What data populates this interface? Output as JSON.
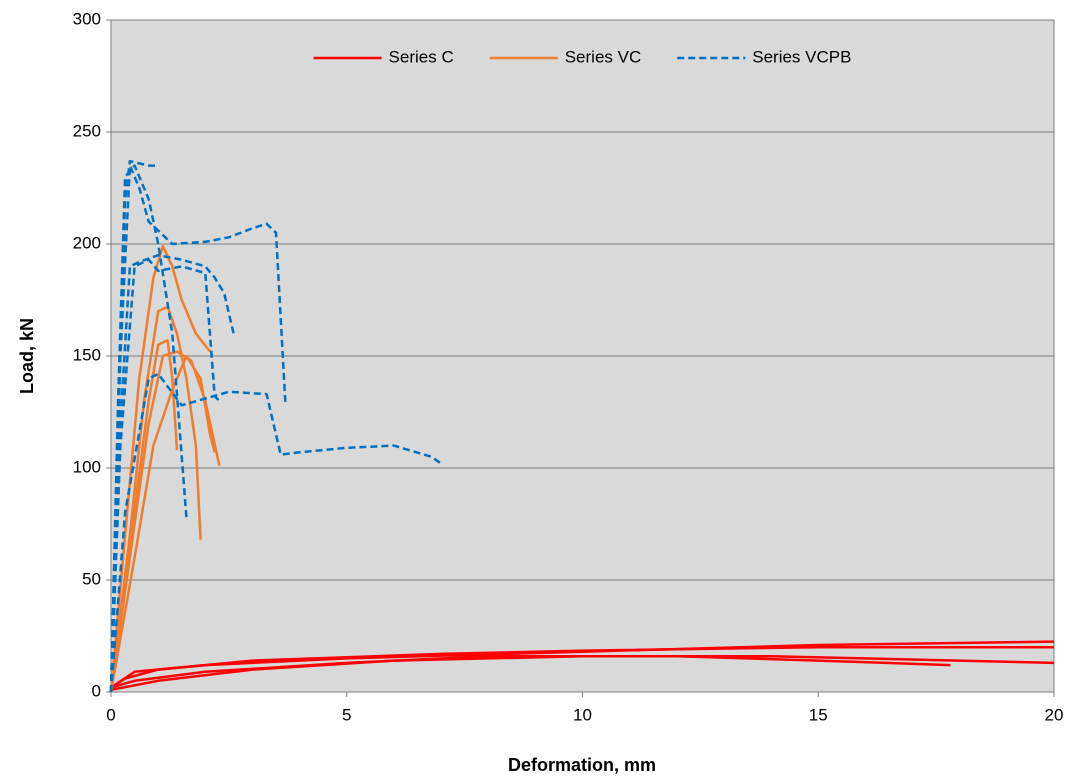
{
  "chart_data": {
    "type": "line",
    "xlabel": "Deformation, mm",
    "ylabel": "Load, kN",
    "xlim": [
      0,
      20
    ],
    "ylim": [
      0,
      300
    ],
    "xticks": [
      0,
      5,
      10,
      15,
      20
    ],
    "yticks": [
      0,
      50,
      100,
      150,
      200,
      250,
      300
    ],
    "grid": true,
    "legend": "top",
    "series": [
      {
        "name": "Series C",
        "color": "#ff0000",
        "dashed": false,
        "curves": [
          {
            "x": [
              0,
              0.5,
              2,
              5,
              10,
              15,
              20
            ],
            "values": [
              2,
              9,
              12,
              15,
              18,
              21,
              22.5
            ]
          },
          {
            "x": [
              0,
              0.3,
              1,
              3,
              7,
              10,
              15,
              20
            ],
            "values": [
              2,
              6,
              10,
              14,
              17,
              18.5,
              20,
              20
            ]
          },
          {
            "x": [
              0,
              1,
              3,
              6,
              10,
              14,
              20
            ],
            "values": [
              1,
              5,
              10,
              14,
              16,
              16,
              13
            ]
          },
          {
            "x": [
              0,
              0.5,
              2,
              5,
              8,
              12,
              15,
              17.8
            ],
            "values": [
              2,
              5,
              9,
              13,
              16,
              16,
              14,
              12
            ]
          }
        ]
      },
      {
        "name": "Series VC",
        "color": "#ed7d31",
        "dashed": false,
        "curves": [
          {
            "x": [
              0,
              0.3,
              0.6,
              0.9,
              1.1,
              1.3,
              1.5,
              1.8,
              2.1
            ],
            "values": [
              0,
              70,
              140,
              185,
              199,
              190,
              175,
              160,
              152
            ]
          },
          {
            "x": [
              0,
              0.4,
              0.7,
              1,
              1.2,
              1.4,
              1.6,
              1.8,
              1.9
            ],
            "values": [
              0,
              70,
              130,
              170,
              172,
              160,
              140,
              110,
              68
            ]
          },
          {
            "x": [
              0,
              0.4,
              0.8,
              1.1,
              1.4,
              1.7,
              2,
              2.3
            ],
            "values": [
              0,
              60,
              120,
              150,
              152,
              148,
              130,
              101
            ]
          },
          {
            "x": [
              0,
              0.4,
              0.8,
              1.0,
              1.2,
              1.3,
              1.4
            ],
            "values": [
              0,
              65,
              130,
              155,
              157,
              140,
              108
            ]
          },
          {
            "x": [
              0,
              0.5,
              0.9,
              1.3,
              1.6,
              1.9,
              2.1,
              2.2
            ],
            "values": [
              0,
              60,
              110,
              135,
              150,
              140,
              115,
              107
            ]
          }
        ]
      },
      {
        "name": "Series VCPB",
        "color": "#0070c0",
        "dashed": true,
        "curves": [
          {
            "x": [
              0,
              0.15,
              0.3,
              0.4,
              0.6,
              0.8,
              1.0
            ],
            "values": [
              0,
              120,
              220,
              237,
              236,
              235,
              235
            ]
          },
          {
            "x": [
              0,
              0.15,
              0.3,
              0.5,
              0.8,
              1.0,
              1.3,
              1.6
            ],
            "values": [
              0,
              130,
              230,
              235,
              220,
              200,
              160,
              78
            ]
          },
          {
            "x": [
              0,
              0.2,
              0.4,
              0.6,
              0.8,
              1.3,
              2.0,
              2.5,
              3.0,
              3.3,
              3.5,
              3.7
            ],
            "values": [
              0,
              150,
              235,
              225,
              210,
              200,
              201,
              203,
              207,
              209,
              205,
              128
            ]
          },
          {
            "x": [
              0,
              0.2,
              0.4,
              0.6,
              1,
              1.5,
              2,
              2.2,
              2.4,
              2.6
            ],
            "values": [
              0,
              120,
              190,
              192,
              195,
              193,
              190,
              185,
              178,
              160
            ]
          },
          {
            "x": [
              0,
              0.2,
              0.5,
              0.8,
              1.0,
              1.5,
              2.0,
              2.2,
              2.3
            ],
            "values": [
              0,
              110,
              190,
              193,
              188,
              190,
              187,
              132,
              130
            ]
          },
          {
            "x": [
              0,
              0.3,
              0.8,
              1.0,
              1.5,
              2.5,
              3.3,
              3.6,
              4.0,
              5.0,
              6.0,
              6.8,
              7.0
            ],
            "values": [
              0,
              80,
              140,
              142,
              128,
              134,
              133,
              106,
              107,
              109,
              110,
              105,
              102
            ]
          }
        ]
      }
    ]
  }
}
